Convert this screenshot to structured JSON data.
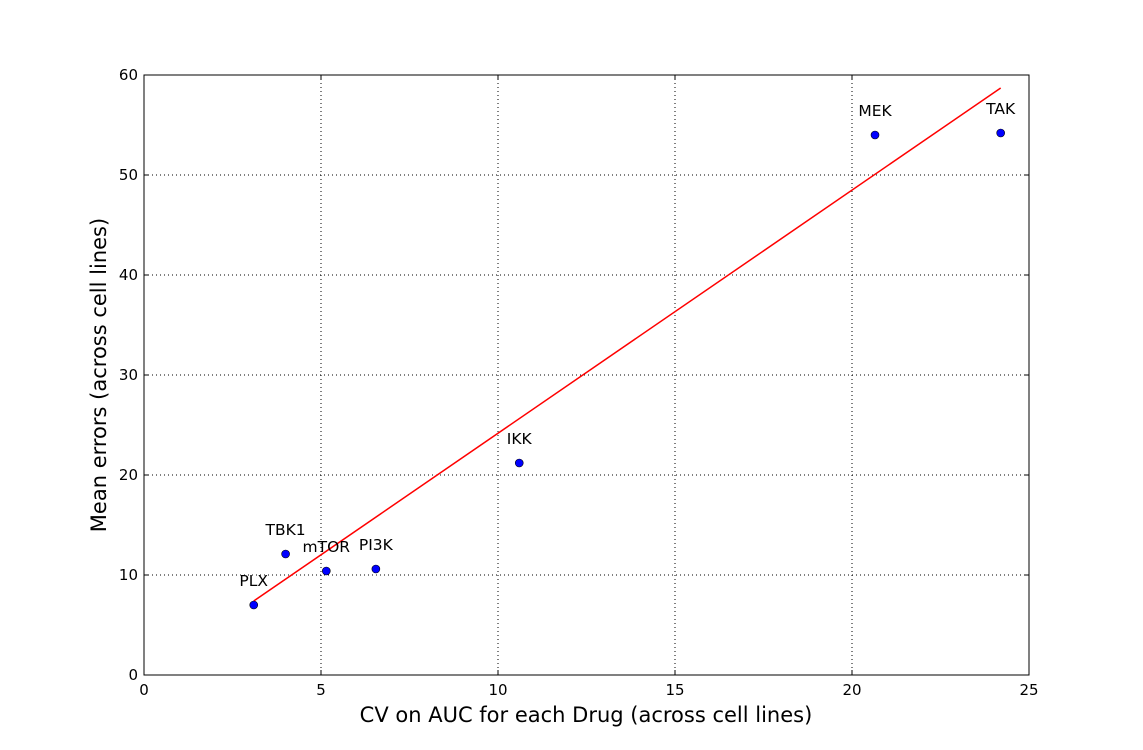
{
  "chart_data": {
    "type": "scatter",
    "title": "",
    "xlabel": "CV on AUC for each Drug (across cell lines)",
    "ylabel": "Mean errors (across cell lines)",
    "xlim": [
      0,
      25
    ],
    "ylim": [
      0,
      60
    ],
    "xticks": [
      0,
      5,
      10,
      15,
      20,
      25
    ],
    "yticks": [
      0,
      10,
      20,
      30,
      40,
      50,
      60
    ],
    "grid": true,
    "point_color": "#0000ff",
    "line_color": "#ff0000",
    "points": [
      {
        "label": "PLX",
        "x": 3.1,
        "y": 7.0
      },
      {
        "label": "TBK1",
        "x": 4.0,
        "y": 12.1
      },
      {
        "label": "mTOR",
        "x": 5.15,
        "y": 10.4
      },
      {
        "label": "PI3K",
        "x": 6.55,
        "y": 10.6
      },
      {
        "label": "IKK",
        "x": 10.6,
        "y": 21.2
      },
      {
        "label": "MEK",
        "x": 20.65,
        "y": 54.0
      },
      {
        "label": "TAK",
        "x": 24.2,
        "y": 54.2
      }
    ],
    "fit_line": {
      "x": [
        3.1,
        24.2
      ],
      "y": [
        7.4,
        58.7
      ]
    }
  }
}
